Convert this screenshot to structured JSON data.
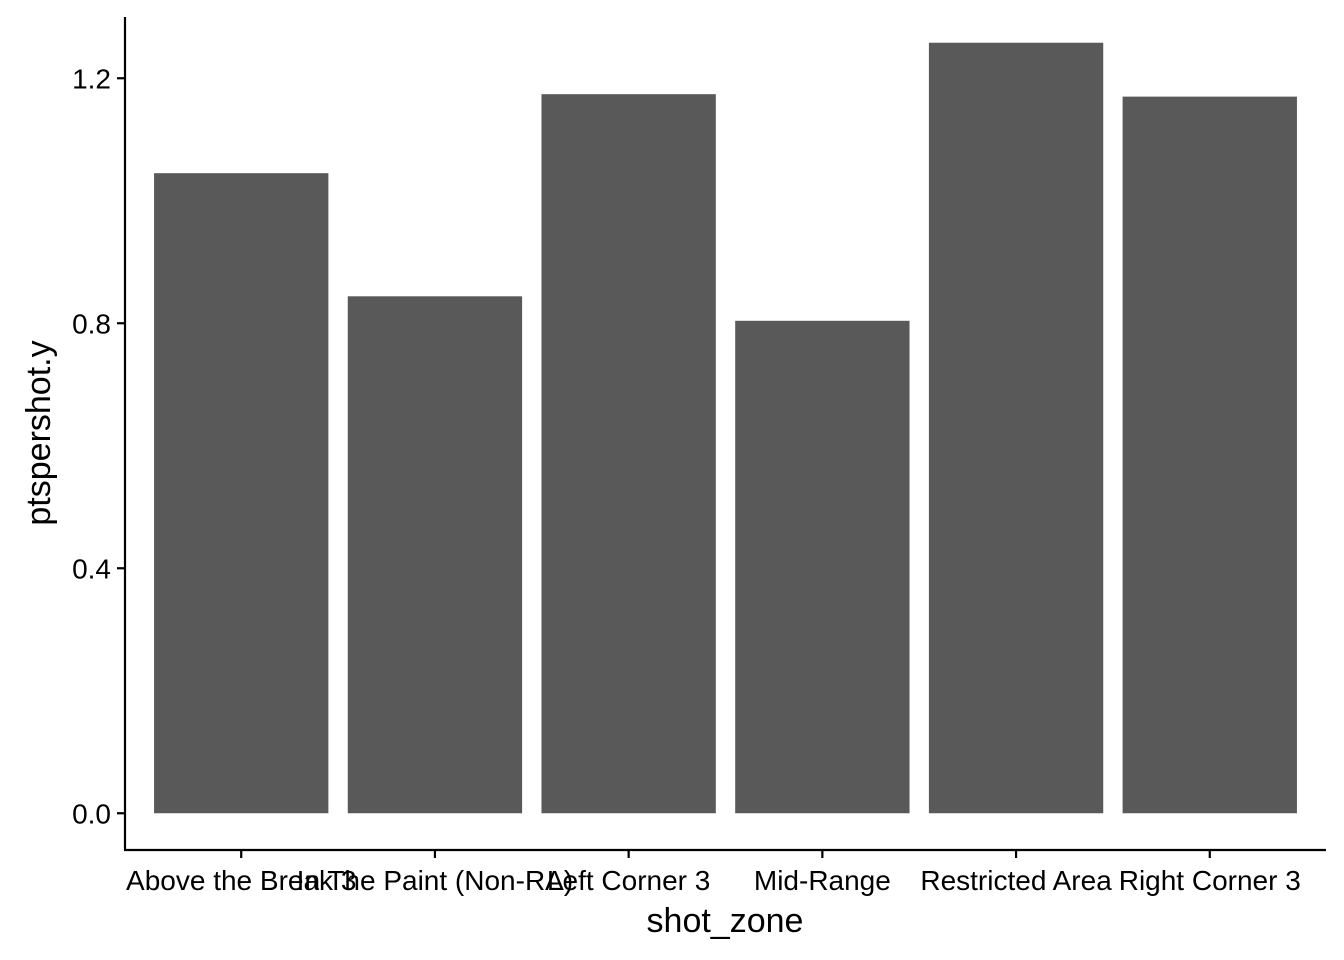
{
  "chart_data": {
    "type": "bar",
    "title": "",
    "xlabel": "shot_zone",
    "ylabel": "ptspershot.y",
    "categories": [
      "Above the Break 3",
      "In The Paint (Non-RA)",
      "Left Corner 3",
      "Mid-Range",
      "Restricted Area",
      "Right Corner 3"
    ],
    "values": [
      1.045,
      0.844,
      1.174,
      0.804,
      1.258,
      1.17
    ],
    "ylim": [
      -0.06,
      1.3
    ],
    "yticks": [
      0.0,
      0.4,
      0.8,
      1.2
    ],
    "ytick_labels": [
      "0.0",
      "0.4",
      "0.8",
      "1.2"
    ],
    "grid": false,
    "legend": "none",
    "bar_color": "#595959"
  }
}
